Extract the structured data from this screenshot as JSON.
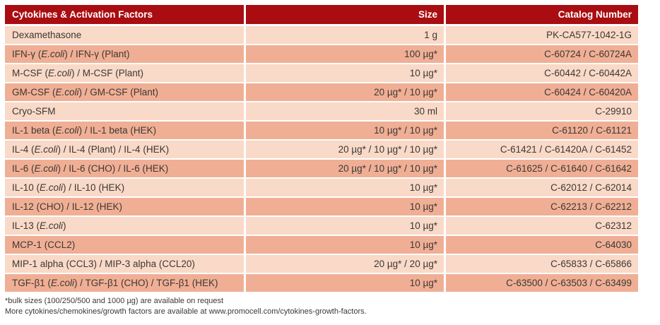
{
  "table": {
    "headers": {
      "product": "Cytokines & Activation Factors",
      "size": "Size",
      "catalog": "Catalog Number"
    },
    "italic_tokens": [
      "E.coli"
    ],
    "rows": [
      {
        "name": "Dexamethasone",
        "size": "1 g",
        "catalog": "PK-CA577-1042-1G"
      },
      {
        "name": "IFN-γ (E.coli) / IFN-γ (Plant)",
        "size": "100 µg*",
        "catalog": "C-60724 / C-60724A"
      },
      {
        "name": "M-CSF (E.coli) / M-CSF (Plant)",
        "size": "10 µg*",
        "catalog": "C-60442 / C-60442A"
      },
      {
        "name": "GM-CSF (E.coli) / GM-CSF (Plant)",
        "size": "20 µg* / 10 µg*",
        "catalog": "C-60424 / C-60420A"
      },
      {
        "name": "Cryo-SFM",
        "size": "30 ml",
        "catalog": "C-29910"
      },
      {
        "name": "IL-1 beta (E.coli) / IL-1 beta (HEK)",
        "size": "10 µg* / 10 µg*",
        "catalog": "C-61120 / C-61121"
      },
      {
        "name": "IL-4 (E.coli) / IL-4 (Plant) / IL-4 (HEK)",
        "size": "20 µg* / 10 µg* / 10 µg*",
        "catalog": "C-61421 / C-61420A / C-61452"
      },
      {
        "name": "IL-6 (E.coli) / IL-6 (CHO) / IL-6 (HEK)",
        "size": "20 µg* / 10 µg* / 10 µg*",
        "catalog": "C-61625 / C-61640 / C-61642"
      },
      {
        "name": "IL-10 (E.coli) / IL-10 (HEK)",
        "size": "10 µg*",
        "catalog": "C-62012 / C-62014"
      },
      {
        "name": "IL-12 (CHO) / IL-12 (HEK)",
        "size": "10 µg*",
        "catalog": "C-62213 / C-62212"
      },
      {
        "name": "IL-13 (E.coli)",
        "size": "10 µg*",
        "catalog": "C-62312"
      },
      {
        "name": "MCP-1 (CCL2)",
        "size": "10 µg*",
        "catalog": "C-64030"
      },
      {
        "name": "MIP-1 alpha (CCL3) / MIP-3 alpha (CCL20)",
        "size": "20 µg* / 20 µg*",
        "catalog": "C-65833 / C-65866"
      },
      {
        "name": "TGF-β1 (E.coli) / TGF-β1 (CHO) / TGF-β1 (HEK)",
        "size": "10 µg*",
        "catalog": "C-63500 / C-63503 / C-63499"
      }
    ]
  },
  "footnotes": [
    "*bulk sizes (100/250/500 and 1000 µg) are available on request",
    "More cytokines/chemokines/growth factors are available at www.promocell.com/cytokines-growth-factors."
  ],
  "colors": {
    "header_bg": "#a90d11",
    "header_text": "#ffffff",
    "row_light": "#f9d9c7",
    "row_dark": "#f0af95",
    "text": "#3c3834"
  }
}
